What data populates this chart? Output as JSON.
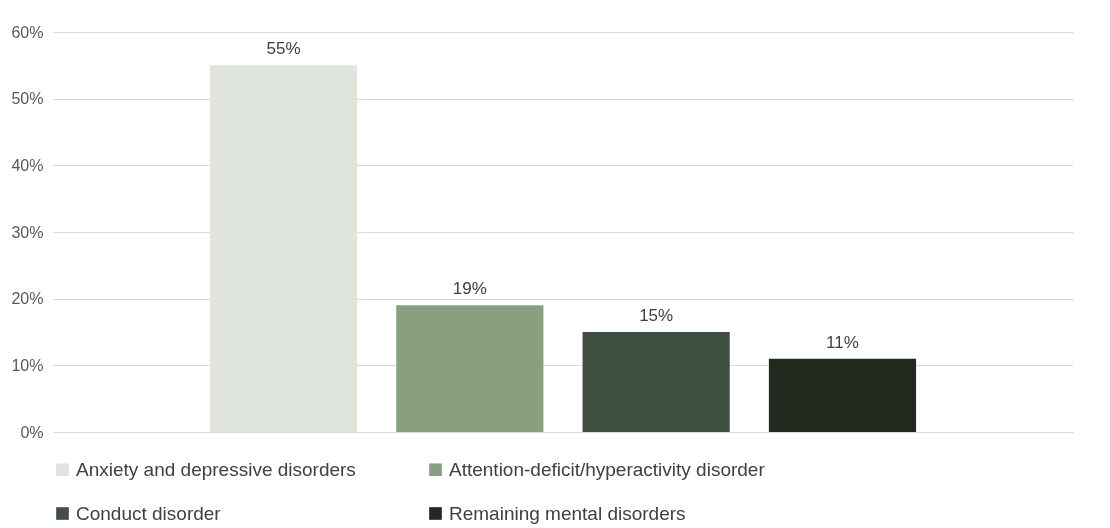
{
  "chart_data": {
    "type": "bar",
    "categories": [
      null
    ],
    "series": [
      {
        "name": "Anxiety and depressive disorders",
        "color": "#dfe4dd",
        "values": [
          55
        ],
        "value_labels": [
          "55%"
        ]
      },
      {
        "name": "Attention-deficit/hyperactivity disorder",
        "color": "#88a07f",
        "values": [
          19
        ],
        "value_labels": [
          "19%"
        ]
      },
      {
        "name": "Conduct disorder",
        "color": "#405040",
        "values": [
          15
        ],
        "value_labels": [
          "15%"
        ]
      },
      {
        "name": "Remaining mental disorders",
        "color": "#222a20",
        "values": [
          11
        ],
        "value_labels": [
          "11%"
        ]
      }
    ],
    "ylim": [
      0,
      60
    ],
    "yticks": [
      {
        "value": 0,
        "label": "0%"
      },
      {
        "value": 10,
        "label": "10%"
      },
      {
        "value": 20,
        "label": "20%"
      },
      {
        "value": 30,
        "label": "30%"
      },
      {
        "value": 40,
        "label": "40%"
      },
      {
        "value": 50,
        "label": "50%"
      },
      {
        "value": 60,
        "label": "60%"
      }
    ],
    "grid": "y",
    "legend": "bottom"
  }
}
